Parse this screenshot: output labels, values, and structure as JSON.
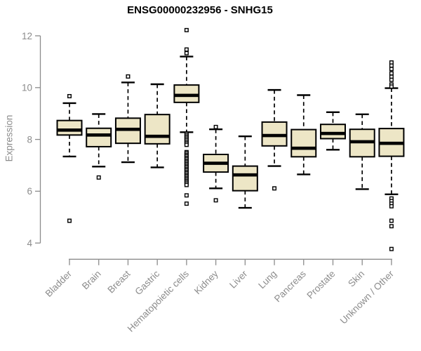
{
  "chart_data": {
    "type": "boxplot",
    "title": "ENSG00000232956 - SNHG15",
    "ylabel": "Expression",
    "ylim": [
      3.6,
      12.4
    ],
    "yticks": [
      4,
      6,
      8,
      10,
      12
    ],
    "grid": false,
    "legend": "none",
    "colors": {
      "box_fill": "#EDE6C6",
      "box_stroke": "#000000",
      "median": "#000000",
      "whisker": "#000000",
      "outlier_fill": "#FFFFFF",
      "outlier_stroke": "#000000",
      "axis": "#8C8C8C",
      "tick_label": "#8C8C8C",
      "title": "#000000",
      "background": "#FFFFFF"
    },
    "categories": [
      "Bladder",
      "Brain",
      "Breast",
      "Gastric",
      "Hematopoietic cells",
      "Kidney",
      "Liver",
      "Lung",
      "Pancreas",
      "Prostate",
      "Skin",
      "Unknown / Other"
    ],
    "series": [
      {
        "name": "Bladder",
        "whisker_low": 7.34,
        "q1": 8.17,
        "median": 8.36,
        "q3": 8.73,
        "whisker_high": 9.4,
        "outliers": [
          9.67,
          4.86
        ]
      },
      {
        "name": "Brain",
        "whisker_low": 6.95,
        "q1": 7.72,
        "median": 8.17,
        "q3": 8.43,
        "whisker_high": 8.98,
        "outliers": [
          6.53
        ]
      },
      {
        "name": "Breast",
        "whisker_low": 7.12,
        "q1": 7.85,
        "median": 8.39,
        "q3": 8.82,
        "whisker_high": 10.2,
        "outliers": [
          10.43
        ]
      },
      {
        "name": "Gastric",
        "whisker_low": 6.92,
        "q1": 7.83,
        "median": 8.12,
        "q3": 8.96,
        "whisker_high": 10.13,
        "outliers": []
      },
      {
        "name": "Hematopoietic cells",
        "whisker_low": 8.28,
        "q1": 9.43,
        "median": 9.7,
        "q3": 10.1,
        "whisker_high": 11.2,
        "outliers": [
          12.22,
          11.47,
          11.33,
          8.21,
          8.15,
          8.09,
          8.03,
          7.97,
          7.91,
          7.85,
          7.79,
          7.51,
          7.46,
          7.4,
          7.35,
          7.29,
          7.24,
          7.18,
          7.13,
          7.07,
          7.02,
          6.96,
          6.91,
          6.85,
          6.8,
          6.74,
          6.69,
          6.63,
          6.58,
          6.52,
          6.47,
          6.41,
          6.36,
          6.3,
          6.24,
          5.84,
          5.52
        ]
      },
      {
        "name": "Kidney",
        "whisker_low": 6.11,
        "q1": 6.74,
        "median": 7.08,
        "q3": 7.42,
        "whisker_high": 8.39,
        "outliers": [
          8.48,
          5.65
        ]
      },
      {
        "name": "Liver",
        "whisker_low": 5.36,
        "q1": 6.02,
        "median": 6.63,
        "q3": 6.97,
        "whisker_high": 8.12,
        "outliers": []
      },
      {
        "name": "Lung",
        "whisker_low": 6.97,
        "q1": 7.75,
        "median": 8.15,
        "q3": 8.67,
        "whisker_high": 9.91,
        "outliers": [
          6.11
        ]
      },
      {
        "name": "Pancreas",
        "whisker_low": 6.65,
        "q1": 7.33,
        "median": 7.66,
        "q3": 8.38,
        "whisker_high": 9.71,
        "outliers": []
      },
      {
        "name": "Prostate",
        "whisker_low": 7.6,
        "q1": 8.03,
        "median": 8.23,
        "q3": 8.58,
        "whisker_high": 9.05,
        "outliers": []
      },
      {
        "name": "Skin",
        "whisker_low": 6.08,
        "q1": 7.33,
        "median": 7.91,
        "q3": 8.39,
        "whisker_high": 8.97,
        "outliers": []
      },
      {
        "name": "Unknown / Other",
        "whisker_low": 5.88,
        "q1": 7.35,
        "median": 7.85,
        "q3": 8.42,
        "whisker_high": 9.98,
        "outliers": [
          10.97,
          10.85,
          10.72,
          10.55,
          10.42,
          10.3,
          10.12,
          10.04,
          5.72,
          5.62,
          5.52,
          5.42,
          4.86,
          4.65,
          3.77
        ]
      }
    ]
  }
}
